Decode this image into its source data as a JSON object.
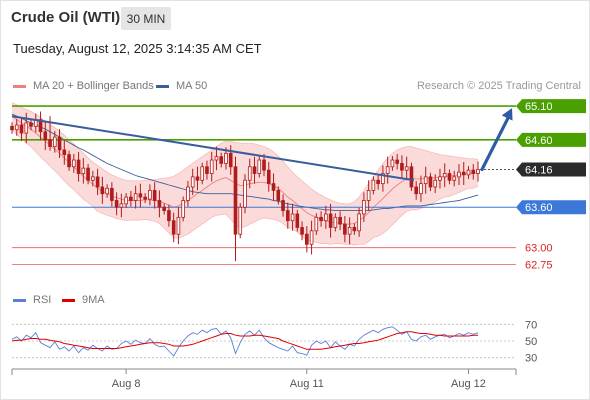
{
  "header": {
    "title": "Crude Oil (WTI)",
    "timeframe": "30 MIN",
    "datetime": "Tuesday, August 12, 2025 3:14:35 AM CET",
    "copyright": "Research © 2025 Trading Central"
  },
  "legend": {
    "bollinger": "MA 20 + Bollinger Bands",
    "ma50": "MA 50",
    "rsi": "RSI",
    "rsi_ma": "9MA"
  },
  "colors": {
    "candle": "#b01c1c",
    "bollinger_fill": "#fbdada",
    "bollinger_line": "#f08080",
    "ma50": "#3c5f96",
    "trendline": "#3a5c9b",
    "resistance": "#4aa000",
    "support": "#3b78d8",
    "current": "#2b2b2b",
    "targets_red": "#e35a5a",
    "rsi": "#5a7fd6",
    "rsi_ma": "#dd0000"
  },
  "chart_data": [
    {
      "type": "candlestick",
      "title": "Crude Oil (WTI)",
      "timeframe": "30 MIN",
      "x_labels": [
        "Aug 8",
        "Aug 11",
        "Aug 12"
      ],
      "ylim": [
        62.55,
        65.25
      ],
      "price_levels": [
        {
          "value": 65.1,
          "label": "65.10",
          "role": "resistance",
          "color": "#4aa000"
        },
        {
          "value": 64.6,
          "label": "64.60",
          "role": "resistance",
          "color": "#4aa000"
        },
        {
          "value": 64.16,
          "label": "64.16",
          "role": "current",
          "color": "#2b2b2b"
        },
        {
          "value": 63.6,
          "label": "63.60",
          "role": "support",
          "color": "#3b78d8"
        },
        {
          "value": 63.0,
          "label": "63.00",
          "role": "target",
          "color": "#e35a5a"
        },
        {
          "value": 62.75,
          "label": "62.75",
          "role": "target",
          "color": "#e35a5a"
        }
      ],
      "close": [
        64.75,
        64.82,
        64.7,
        64.85,
        64.8,
        64.9,
        64.72,
        64.6,
        64.5,
        64.64,
        64.45,
        64.38,
        64.2,
        64.3,
        64.1,
        64.18,
        64.0,
        64.05,
        63.9,
        63.8,
        63.88,
        63.7,
        63.6,
        63.65,
        63.75,
        63.7,
        63.8,
        63.75,
        63.72,
        63.85,
        63.7,
        63.6,
        63.55,
        63.4,
        63.2,
        63.45,
        63.7,
        63.9,
        64.05,
        64.0,
        64.2,
        64.1,
        64.3,
        64.35,
        64.25,
        64.4,
        64.2,
        63.2,
        63.6,
        64.0,
        64.2,
        64.1,
        64.3,
        64.15,
        63.95,
        63.85,
        63.7,
        63.55,
        63.4,
        63.5,
        63.3,
        63.2,
        63.05,
        63.25,
        63.45,
        63.4,
        63.5,
        63.3,
        63.45,
        63.35,
        63.2,
        63.3,
        63.25,
        63.5,
        63.7,
        63.85,
        64.0,
        63.95,
        64.1,
        64.2,
        64.3,
        64.25,
        64.15,
        64.2,
        63.9,
        63.8,
        63.95,
        64.05,
        63.9,
        64.0,
        64.05,
        64.1,
        64.0,
        64.05,
        64.12,
        64.08,
        64.15,
        64.1,
        64.16
      ],
      "bollinger": {
        "mid": [
          64.95,
          64.9,
          64.85,
          64.8,
          64.76,
          64.7,
          64.64,
          64.58,
          64.52,
          64.46,
          64.4,
          64.33,
          64.26,
          64.2,
          64.13,
          64.06,
          64.0,
          63.94,
          63.88,
          63.84,
          63.8,
          63.77,
          63.74,
          63.72,
          63.7,
          63.7,
          63.7,
          63.7,
          63.71,
          63.71,
          63.7,
          63.69,
          63.66,
          63.63,
          63.6,
          63.62,
          63.66,
          63.7,
          63.75,
          63.8,
          63.85,
          63.9,
          63.95,
          63.99,
          64.02,
          64.04,
          64.0,
          63.95,
          63.92,
          63.93,
          63.95,
          63.96,
          63.97,
          63.97,
          63.95,
          63.92,
          63.88,
          63.82,
          63.75,
          63.7,
          63.64,
          63.58,
          63.52,
          63.48,
          63.45,
          63.42,
          63.4,
          63.38,
          63.37,
          63.36,
          63.35,
          63.35,
          63.36,
          63.4,
          63.45,
          63.52,
          63.6,
          63.66,
          63.73,
          63.8,
          63.87,
          63.93,
          63.98,
          64.02,
          64.03,
          64.02,
          64.02,
          64.03,
          64.03,
          64.04,
          64.05,
          64.06,
          64.06,
          64.07,
          64.08,
          64.09,
          64.1,
          64.1,
          64.11
        ],
        "upper": [
          65.15,
          65.12,
          65.08,
          65.05,
          65.02,
          64.98,
          64.93,
          64.88,
          64.83,
          64.78,
          64.73,
          64.67,
          64.6,
          64.54,
          64.47,
          64.4,
          64.33,
          64.27,
          64.22,
          64.17,
          64.12,
          64.08,
          64.05,
          64.02,
          64.0,
          63.99,
          63.99,
          63.99,
          64.0,
          64.01,
          64.01,
          64.02,
          64.03,
          64.04,
          64.06,
          64.1,
          64.15,
          64.2,
          64.25,
          64.3,
          64.35,
          64.4,
          64.45,
          64.5,
          64.55,
          64.58,
          64.58,
          64.56,
          64.55,
          64.55,
          64.55,
          64.54,
          64.52,
          64.5,
          64.47,
          64.42,
          64.36,
          64.28,
          64.2,
          64.12,
          64.05,
          63.99,
          63.93,
          63.87,
          63.82,
          63.78,
          63.74,
          63.71,
          63.68,
          63.66,
          63.65,
          63.65,
          63.68,
          63.75,
          63.85,
          63.95,
          64.05,
          64.15,
          64.25,
          64.33,
          64.4,
          64.45,
          64.48,
          64.5,
          64.5,
          64.48,
          64.46,
          64.44,
          64.42,
          64.4,
          64.38,
          64.37,
          64.36,
          64.35,
          64.34,
          64.33,
          64.32,
          64.32,
          64.31
        ],
        "lower": [
          64.75,
          64.68,
          64.62,
          64.55,
          64.5,
          64.42,
          64.35,
          64.28,
          64.21,
          64.14,
          64.07,
          63.99,
          63.92,
          63.86,
          63.79,
          63.72,
          63.67,
          63.61,
          63.54,
          63.51,
          63.48,
          63.46,
          63.43,
          63.42,
          63.4,
          63.41,
          63.41,
          63.41,
          63.42,
          63.41,
          63.39,
          63.36,
          63.29,
          63.22,
          63.14,
          63.14,
          63.17,
          63.2,
          63.25,
          63.3,
          63.35,
          63.4,
          63.45,
          63.48,
          63.49,
          63.5,
          63.42,
          63.34,
          63.29,
          63.31,
          63.35,
          63.38,
          63.42,
          63.44,
          63.43,
          63.42,
          63.4,
          63.36,
          63.3,
          63.28,
          63.23,
          63.17,
          63.11,
          63.09,
          63.08,
          63.06,
          63.06,
          63.05,
          63.06,
          63.06,
          63.05,
          63.05,
          63.04,
          63.05,
          63.05,
          63.09,
          63.15,
          63.17,
          63.21,
          63.27,
          63.34,
          63.41,
          63.48,
          63.54,
          63.56,
          63.56,
          63.58,
          63.62,
          63.64,
          63.68,
          63.72,
          63.75,
          63.76,
          63.79,
          63.82,
          63.85,
          63.88,
          63.88,
          63.91
        ]
      },
      "ma50": [
        64.98,
        64.95,
        64.92,
        64.88,
        64.85,
        64.82,
        64.79,
        64.76,
        64.72,
        64.68,
        64.64,
        64.6,
        64.56,
        64.52,
        64.48,
        64.45,
        64.41,
        64.37,
        64.33,
        64.29,
        64.25,
        64.22,
        64.19,
        64.16,
        64.13,
        64.1,
        64.07,
        64.05,
        64.03,
        64.01,
        63.99,
        63.97,
        63.95,
        63.93,
        63.91,
        63.89,
        63.87,
        63.85,
        63.83,
        63.82,
        63.81,
        63.8,
        63.8,
        63.8,
        63.8,
        63.8,
        63.8,
        63.79,
        63.78,
        63.77,
        63.76,
        63.75,
        63.74,
        63.73,
        63.72,
        63.7,
        63.69,
        63.67,
        63.65,
        63.64,
        63.62,
        63.61,
        63.6,
        63.59,
        63.58,
        63.57,
        63.56,
        63.56,
        63.55,
        63.55,
        63.55,
        63.55,
        63.55,
        63.55,
        63.55,
        63.55,
        63.56,
        63.57,
        63.58,
        63.58,
        63.59,
        63.6,
        63.61,
        63.62,
        63.62,
        63.62,
        63.62,
        63.63,
        63.64,
        63.65,
        63.66,
        63.67,
        63.68,
        63.69,
        63.7,
        63.72,
        63.74,
        63.76,
        63.78
      ],
      "trendline": {
        "from": 64.95,
        "to": 64.0
      },
      "projection": {
        "from": 64.16,
        "to": 65.1
      }
    },
    {
      "type": "line",
      "title": "RSI",
      "ylim": [
        20,
        80
      ],
      "y_ticks": [
        "70",
        "50",
        "30"
      ],
      "series": [
        {
          "name": "RSI",
          "values": [
            52,
            55,
            50,
            57,
            54,
            60,
            48,
            45,
            42,
            49,
            40,
            43,
            38,
            44,
            36,
            42,
            39,
            45,
            41,
            38,
            44,
            40,
            41,
            47,
            50,
            46,
            51,
            48,
            47,
            53,
            46,
            43,
            44,
            38,
            32,
            42,
            50,
            56,
            60,
            58,
            63,
            60,
            64,
            65,
            58,
            62,
            54,
            35,
            48,
            58,
            62,
            57,
            63,
            54,
            48,
            45,
            42,
            40,
            38,
            44,
            36,
            35,
            33,
            45,
            50,
            47,
            50,
            42,
            49,
            44,
            40,
            46,
            44,
            52,
            57,
            60,
            63,
            60,
            64,
            66,
            67,
            63,
            58,
            61,
            52,
            50,
            55,
            57,
            52,
            55,
            57,
            58,
            54,
            56,
            59,
            57,
            60,
            58,
            60
          ]
        },
        {
          "name": "9MA",
          "values": [
            50,
            51,
            51,
            52,
            53,
            53,
            52,
            52,
            51,
            50,
            49,
            47,
            46,
            45,
            44,
            43,
            42,
            41,
            41,
            41,
            41,
            41,
            41,
            42,
            43,
            44,
            45,
            46,
            47,
            48,
            48,
            48,
            47,
            46,
            44,
            44,
            44,
            45,
            46,
            48,
            50,
            52,
            54,
            56,
            58,
            59,
            59,
            57,
            56,
            56,
            56,
            57,
            57,
            56,
            55,
            54,
            53,
            50,
            48,
            46,
            44,
            42,
            40,
            40,
            40,
            40,
            41,
            42,
            43,
            44,
            45,
            46,
            47,
            47,
            48,
            49,
            50,
            51,
            53,
            55,
            57,
            59,
            60,
            61,
            61,
            60,
            59,
            59,
            58,
            57,
            57,
            56,
            56,
            56,
            56,
            56,
            56,
            57,
            57
          ]
        }
      ]
    }
  ]
}
